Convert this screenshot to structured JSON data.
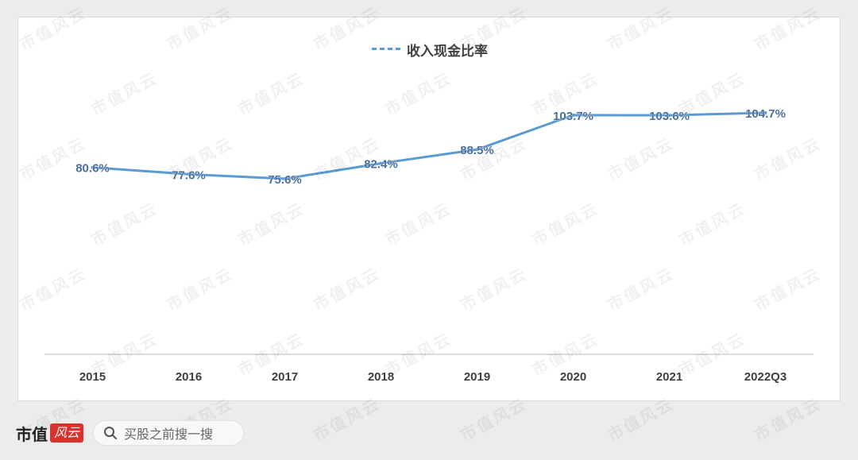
{
  "chart_data": {
    "type": "line",
    "categories": [
      "2015",
      "2016",
      "2017",
      "2018",
      "2019",
      "2020",
      "2021",
      "2022Q3"
    ],
    "series": [
      {
        "name": "收入现金比率",
        "values": [
          80.6,
          77.6,
          75.6,
          82.4,
          88.5,
          103.7,
          103.6,
          104.7
        ],
        "labels": [
          "80.6%",
          "77.6%",
          "75.6%",
          "82.4%",
          "88.5%",
          "103.7%",
          "103.6%",
          "104.7%"
        ],
        "color": "#5b9bd5"
      }
    ],
    "ylim": [
      0,
      140
    ],
    "legend_position": "top-center",
    "grid": false
  },
  "watermark_text": "市值风云",
  "footer": {
    "brand": "市值",
    "brand_badge": "风云",
    "search_text": "买股之前搜一搜"
  }
}
